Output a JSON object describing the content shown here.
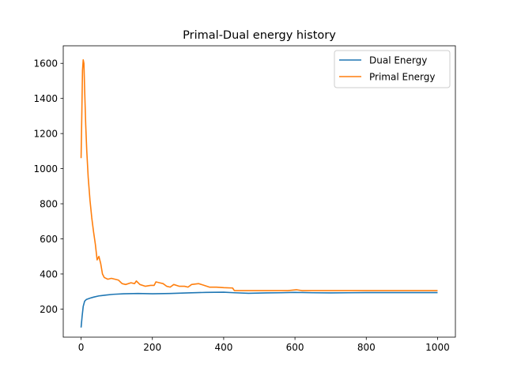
{
  "chart_data": {
    "type": "line",
    "title": "Primal-Dual energy history",
    "xlabel": "",
    "ylabel": "",
    "xlim": [
      -50,
      1050
    ],
    "ylim": [
      40,
      1700
    ],
    "xticks": [
      0,
      200,
      400,
      600,
      800,
      1000
    ],
    "yticks": [
      200,
      400,
      600,
      800,
      1000,
      1200,
      1400,
      1600
    ],
    "grid": false,
    "legend_position": "top-right",
    "series": [
      {
        "name": "Dual Energy",
        "color": "#1f77b4",
        "points": [
          [
            0,
            95
          ],
          [
            3,
            160
          ],
          [
            6,
            215
          ],
          [
            10,
            245
          ],
          [
            15,
            255
          ],
          [
            25,
            262
          ],
          [
            35,
            268
          ],
          [
            50,
            275
          ],
          [
            70,
            280
          ],
          [
            90,
            284
          ],
          [
            120,
            287
          ],
          [
            160,
            289
          ],
          [
            200,
            287
          ],
          [
            250,
            289
          ],
          [
            300,
            292
          ],
          [
            350,
            295
          ],
          [
            400,
            296
          ],
          [
            430,
            293
          ],
          [
            470,
            290
          ],
          [
            520,
            292
          ],
          [
            560,
            293
          ],
          [
            600,
            295
          ],
          [
            650,
            293
          ],
          [
            700,
            292
          ],
          [
            750,
            293
          ],
          [
            800,
            294
          ],
          [
            850,
            294
          ],
          [
            900,
            294
          ],
          [
            950,
            294
          ],
          [
            1000,
            294
          ]
        ]
      },
      {
        "name": "Primal Energy",
        "color": "#ff7f0e",
        "points": [
          [
            0,
            1060
          ],
          [
            2,
            1300
          ],
          [
            4,
            1560
          ],
          [
            6,
            1620
          ],
          [
            8,
            1600
          ],
          [
            10,
            1450
          ],
          [
            13,
            1250
          ],
          [
            16,
            1100
          ],
          [
            20,
            950
          ],
          [
            25,
            820
          ],
          [
            30,
            720
          ],
          [
            35,
            640
          ],
          [
            40,
            570
          ],
          [
            45,
            480
          ],
          [
            50,
            500
          ],
          [
            55,
            460
          ],
          [
            60,
            400
          ],
          [
            65,
            380
          ],
          [
            75,
            370
          ],
          [
            85,
            375
          ],
          [
            95,
            370
          ],
          [
            105,
            365
          ],
          [
            115,
            345
          ],
          [
            125,
            340
          ],
          [
            140,
            350
          ],
          [
            150,
            345
          ],
          [
            155,
            360
          ],
          [
            165,
            340
          ],
          [
            180,
            330
          ],
          [
            195,
            335
          ],
          [
            205,
            335
          ],
          [
            210,
            355
          ],
          [
            220,
            350
          ],
          [
            230,
            345
          ],
          [
            240,
            330
          ],
          [
            250,
            325
          ],
          [
            260,
            340
          ],
          [
            275,
            330
          ],
          [
            290,
            330
          ],
          [
            300,
            325
          ],
          [
            310,
            340
          ],
          [
            330,
            345
          ],
          [
            345,
            335
          ],
          [
            360,
            325
          ],
          [
            380,
            325
          ],
          [
            400,
            322
          ],
          [
            425,
            320
          ],
          [
            430,
            305
          ],
          [
            470,
            305
          ],
          [
            520,
            305
          ],
          [
            580,
            305
          ],
          [
            605,
            310
          ],
          [
            620,
            305
          ],
          [
            700,
            305
          ],
          [
            800,
            305
          ],
          [
            900,
            305
          ],
          [
            1000,
            305
          ]
        ]
      }
    ]
  }
}
